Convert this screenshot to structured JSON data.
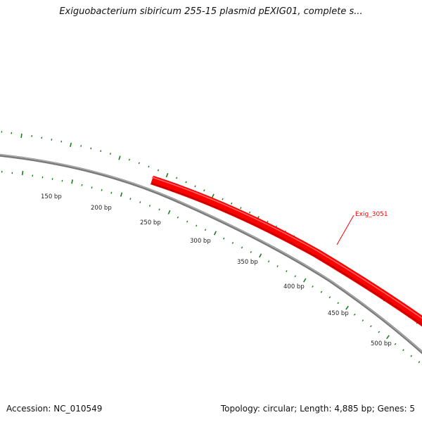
{
  "title": "Exiguobacterium sibiricum 255-15 plasmid pEXIG01, complete s...",
  "footer": {
    "accession": "Accession: NC_010549",
    "summary": "Topology: circular; Length: 4,885 bp; Genes: 5"
  },
  "map": {
    "scale_labels": [
      "150 bp",
      "200 bp",
      "250 bp",
      "300 bp",
      "350 bp",
      "400 bp",
      "450 bp",
      "500 bp"
    ],
    "backbone_color": "#808080",
    "tick_color": "#1f7a1f",
    "gene": {
      "name": "Exig_3051",
      "color": "#ff0000"
    }
  }
}
